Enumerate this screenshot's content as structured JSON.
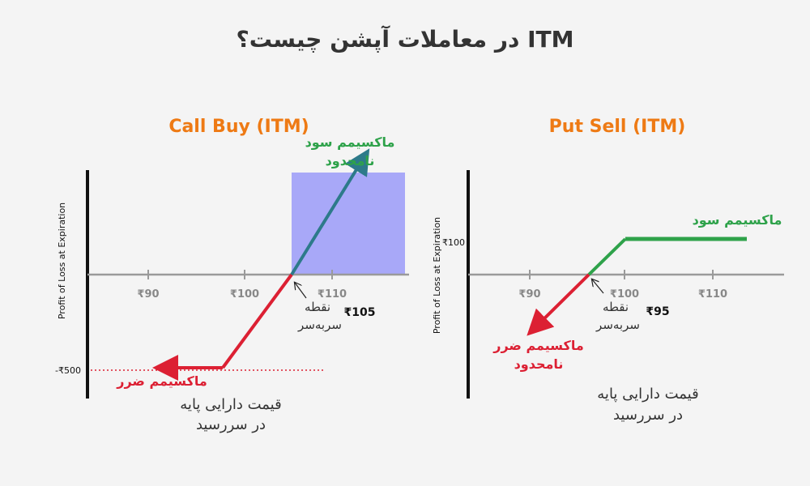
{
  "title": "ITM در معاملات آپشن چیست؟",
  "colors": {
    "orange": "#ee7a14",
    "green": "#2ea24a",
    "red": "#dc2033",
    "teal": "#2d7a8a",
    "shade": "#a8a8f8",
    "axis": "#111111",
    "hline": "#9a9a9a",
    "text": "#333333"
  },
  "left": {
    "title": "Call Buy (ITM)",
    "y_axis_label": "Profit of Loss at Expiration",
    "ticks": [
      "₹90",
      "₹100",
      "₹110"
    ],
    "loss_level_label": "-₹500",
    "breakeven_label_line1": "نقطه",
    "breakeven_label_line2": "سربه‌سر",
    "breakeven_value": "₹105",
    "max_profit_line1": "ماکسیمم سود",
    "max_profit_line2": "نامحدود",
    "max_loss": "ماکسیمم ضرر",
    "x_caption_line1": "قیمت دارایی پایه",
    "x_caption_line2": "در سررسید"
  },
  "right": {
    "title": "Put Sell (ITM)",
    "y_axis_label": "Profit of Loss at Expiration",
    "ticks": [
      "₹90",
      "₹100",
      "₹110"
    ],
    "profit_level_label": "₹100",
    "breakeven_label_line1": "نقطه",
    "breakeven_label_line2": "سربه‌سر",
    "breakeven_value": "₹95",
    "max_profit": "ماکسیمم سود",
    "max_loss_line1": "ماکسیمم ضرر",
    "max_loss_line2": "نامحدود",
    "x_caption_line1": "قیمت دارایی پایه",
    "x_caption_line2": "در سررسید"
  }
}
